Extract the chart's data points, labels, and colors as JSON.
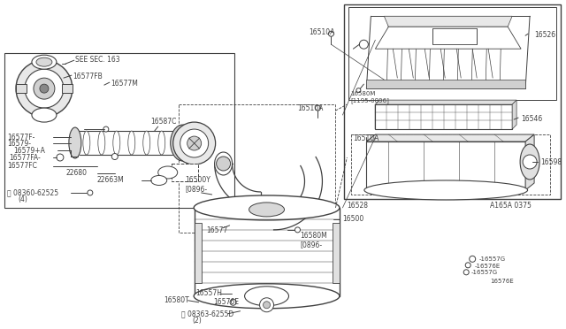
{
  "bg": "#ffffff",
  "lc": "#404040",
  "lw": 0.7,
  "fs": 5.5,
  "labels": {
    "see_sec": "SEE SEC. 163",
    "16577FB": "16577FB",
    "16577M": "16577M",
    "16587C": "16587C",
    "16577F": "16577F-",
    "16579": "16579-",
    "16579A": "16579+A",
    "16577FA": "16577FA-",
    "16577FC": "16577FC",
    "22680": "22680",
    "22663M": "22663M",
    "08360": "08360-62525",
    "4": "(4)",
    "16557H": "16557H",
    "16576E1": "16576E",
    "16580T": "16580T",
    "08363": "08363-6255D",
    "2": "(2)",
    "16500Y": "16500Y\n[0896-",
    "16510A_t": "16510A",
    "16580M_t": "16580M\n[1195-0896]",
    "16526": "16526",
    "16546": "16546",
    "16510A_b": "16510A",
    "16598": "16598",
    "16557G1": "-16557G",
    "16557G2": "-16557G",
    "16576E2": "-16576E",
    "16576E3": "16576E",
    "16528": "16528",
    "A165A": "A165A 0375",
    "16577": "16577",
    "16580M_m": "16580M\n[0896-",
    "16500": "16500"
  }
}
